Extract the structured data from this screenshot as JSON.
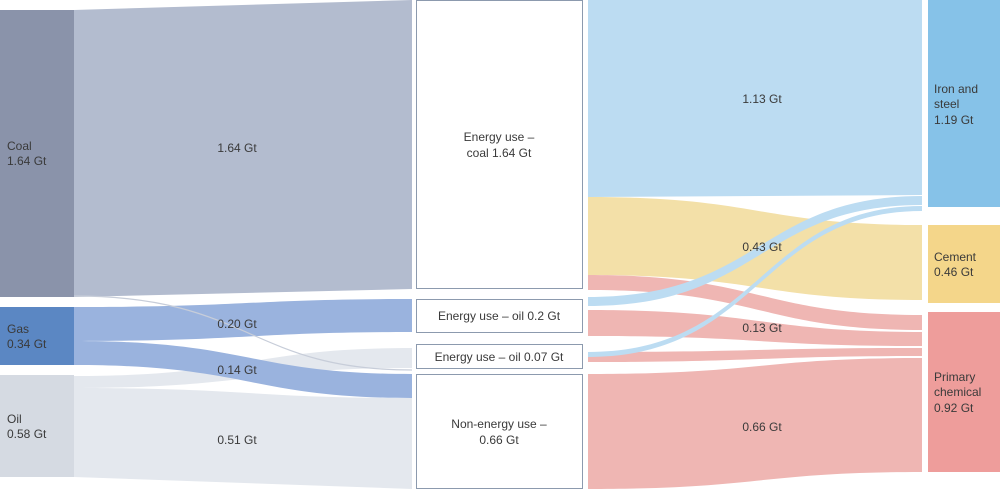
{
  "colors": {
    "coal": "#8a93aa",
    "gas": "#5b87c3",
    "oil": "#d5dae2",
    "coal_flow": "#b3bccf",
    "gas_flow": "#9ab3de",
    "oil_flow": "#e4e8ee",
    "iron_steel": "#86c2e8",
    "iron_flow": "#bcdcf2",
    "cement": "#f4d68a",
    "cement_flow": "#f3e0a8",
    "chemical": "#ee9d9b",
    "chemical_flow": "#efb6b3",
    "box_stroke": "#8c9aae"
  },
  "sources": {
    "coal": {
      "name": "Coal",
      "value": "1.64 Gt"
    },
    "gas": {
      "name": "Gas",
      "value": "0.34 Gt"
    },
    "oil": {
      "name": "Oil",
      "value": "0.58 Gt"
    }
  },
  "uses": {
    "coal_energy": {
      "line1": "Energy use –",
      "line2": "coal 1.64 Gt"
    },
    "oil_energy_1": {
      "text": "Energy use – oil 0.2 Gt"
    },
    "oil_energy_2": {
      "text": "Energy use – oil 0.07 Gt"
    },
    "non_energy": {
      "line1": "Non-energy use –",
      "line2": "0.66 Gt"
    }
  },
  "sectors": {
    "iron_steel": {
      "line1": "Iron and",
      "line2": "steel",
      "value": "1.19 Gt"
    },
    "cement": {
      "name": "Cement",
      "value": "0.46 Gt"
    },
    "chemical": {
      "line1": "Primary",
      "line2": "chemical",
      "value": "0.92 Gt"
    }
  },
  "flow_labels": {
    "coal_to_energy": "1.64 Gt",
    "gas_to_oil": "0.20 Gt",
    "gas_to_nonenergy": "0.14 Gt",
    "oil_to_nonenergy": "0.51 Gt",
    "to_iron": "1.13 Gt",
    "to_cement": "0.43 Gt",
    "to_chem_small": "0.13 Gt",
    "to_chem_big": "0.66 Gt"
  }
}
